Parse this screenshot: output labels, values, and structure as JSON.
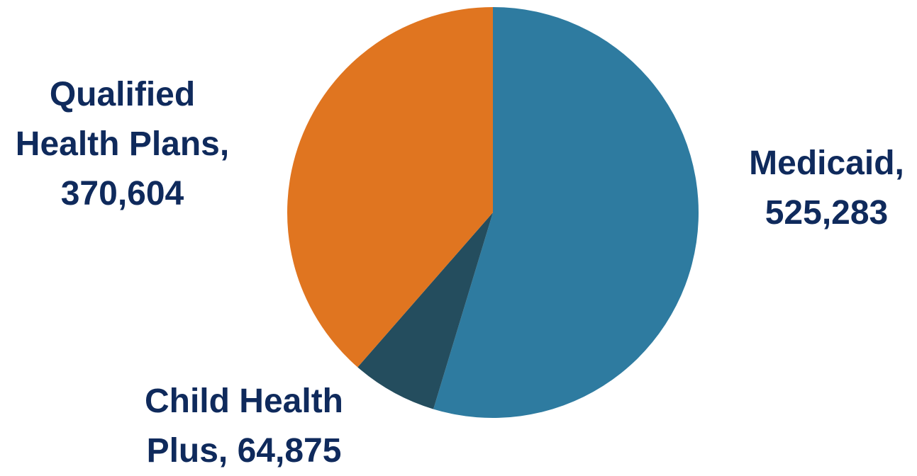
{
  "chart_data": {
    "type": "pie",
    "slices": [
      {
        "label": "Medicaid",
        "value": 525283,
        "color": "#2e7ba0"
      },
      {
        "label": "Child Health Plus",
        "value": 64875,
        "color": "#244d5e"
      },
      {
        "label": "Qualified Health Plans",
        "value": 370604,
        "color": "#e07520"
      }
    ],
    "legend": "none",
    "data_labels": {
      "medicaid": {
        "line1": "Medicaid,",
        "line2": "525,283"
      },
      "child_health_plus": {
        "line1": "Child Health",
        "line2": "Plus, 64,875"
      },
      "qualified_health_plans": {
        "line1": "Qualified",
        "line2": "Health Plans,",
        "line3": "370,604"
      }
    }
  }
}
